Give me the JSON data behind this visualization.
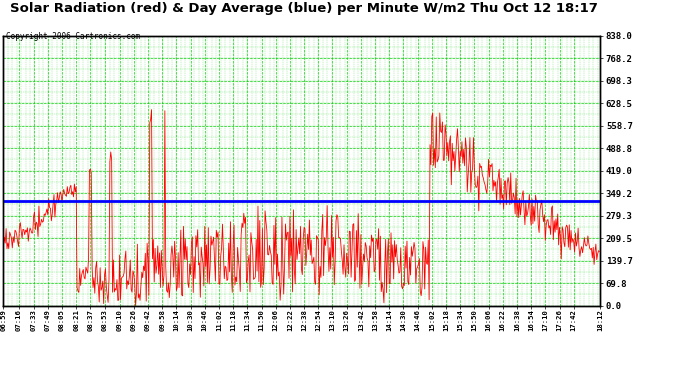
{
  "title": "Solar Radiation (red) & Day Average (blue) per Minute W/m2 Thu Oct 12 18:17",
  "copyright": "Copyright 2006 Cartronics.com",
  "bg_color": "#ffffff",
  "plot_bg_color": "#ffffff",
  "grid_color": "#00cc00",
  "title_color": "#000000",
  "copyright_color": "#000000",
  "red_line_color": "#ff0000",
  "blue_line_color": "#0000ff",
  "xlabel_color": "#000000",
  "ytick_labels": [
    "0.0",
    "69.8",
    "139.7",
    "209.5",
    "279.3",
    "349.2",
    "419.0",
    "488.8",
    "558.7",
    "628.5",
    "698.3",
    "768.2",
    "838.0"
  ],
  "yticks": [
    0.0,
    69.8,
    139.7,
    209.5,
    279.3,
    349.2,
    419.0,
    488.8,
    558.7,
    628.5,
    698.3,
    768.2,
    838.0
  ],
  "ymax": 838.0,
  "ymin": 0.0,
  "day_average": 325.0,
  "xtick_labels": [
    "06:59",
    "07:16",
    "07:33",
    "07:49",
    "08:05",
    "08:21",
    "08:37",
    "08:53",
    "09:10",
    "09:26",
    "09:42",
    "09:58",
    "10:14",
    "10:30",
    "10:46",
    "11:02",
    "11:18",
    "11:34",
    "11:50",
    "12:06",
    "12:22",
    "12:38",
    "12:54",
    "13:10",
    "13:26",
    "13:42",
    "13:58",
    "14:14",
    "14:30",
    "14:46",
    "15:02",
    "15:18",
    "15:34",
    "15:50",
    "16:06",
    "16:22",
    "16:38",
    "16:54",
    "17:10",
    "17:26",
    "17:42",
    "18:12"
  ]
}
